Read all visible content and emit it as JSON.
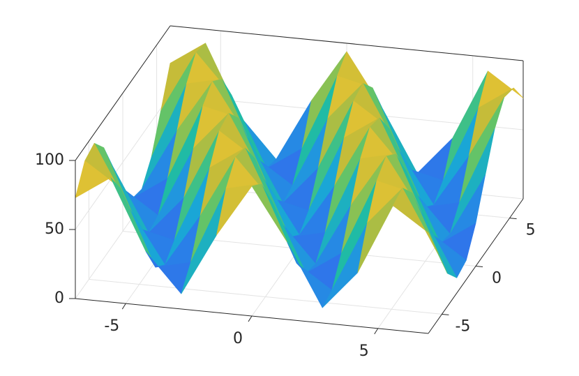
{
  "chart_data": {
    "type": "surface",
    "x": [
      -7,
      -5.6,
      -4.2,
      -2.8,
      -1.4,
      0,
      1.4,
      2.8,
      4.2,
      5.6,
      7
    ],
    "y": [
      -7,
      -5.6,
      -4.2,
      -2.8,
      -1.4,
      0,
      1.4,
      2.8,
      4.2,
      5.6,
      7
    ],
    "z": [
      [
        73,
        90,
        39,
        11,
        56,
        94,
        56,
        11,
        39,
        90,
        73
      ],
      [
        90,
        73,
        18,
        24,
        80,
        86,
        31,
        14,
        65,
        93,
        48
      ],
      [
        93,
        48,
        10,
        48,
        93,
        65,
        14,
        31,
        86,
        80,
        24
      ],
      [
        80,
        24,
        18,
        73,
        90,
        39,
        11,
        56,
        94,
        56,
        11
      ],
      [
        56,
        11,
        39,
        90,
        73,
        18,
        24,
        80,
        86,
        31,
        14
      ],
      [
        31,
        14,
        65,
        93,
        48,
        10,
        48,
        93,
        65,
        14,
        31
      ],
      [
        14,
        31,
        86,
        80,
        24,
        18,
        73,
        90,
        39,
        11,
        56
      ],
      [
        11,
        56,
        94,
        56,
        11,
        39,
        90,
        73,
        18,
        24,
        80
      ],
      [
        24,
        80,
        86,
        31,
        14,
        65,
        93,
        48,
        10,
        48,
        93
      ],
      [
        48,
        93,
        65,
        14,
        31,
        86,
        80,
        24,
        18,
        73,
        90
      ],
      [
        73,
        90,
        39,
        11,
        56,
        94,
        56,
        11,
        39,
        90,
        73
      ]
    ],
    "xlim": [
      -7,
      7
    ],
    "ylim": [
      -7,
      7
    ],
    "zlim": [
      0,
      100
    ],
    "xticks": [
      -5,
      0,
      5
    ],
    "yticks": [
      -5,
      0,
      5
    ],
    "zticks": [
      0,
      50,
      100
    ],
    "colormap": [
      "#3e26a8",
      "#4352f0",
      "#2a7fe8",
      "#1aa7d6",
      "#20bda1",
      "#6cc462",
      "#c1bb3a",
      "#f9c72f",
      "#f9fb14"
    ],
    "grid": true,
    "box": true
  }
}
